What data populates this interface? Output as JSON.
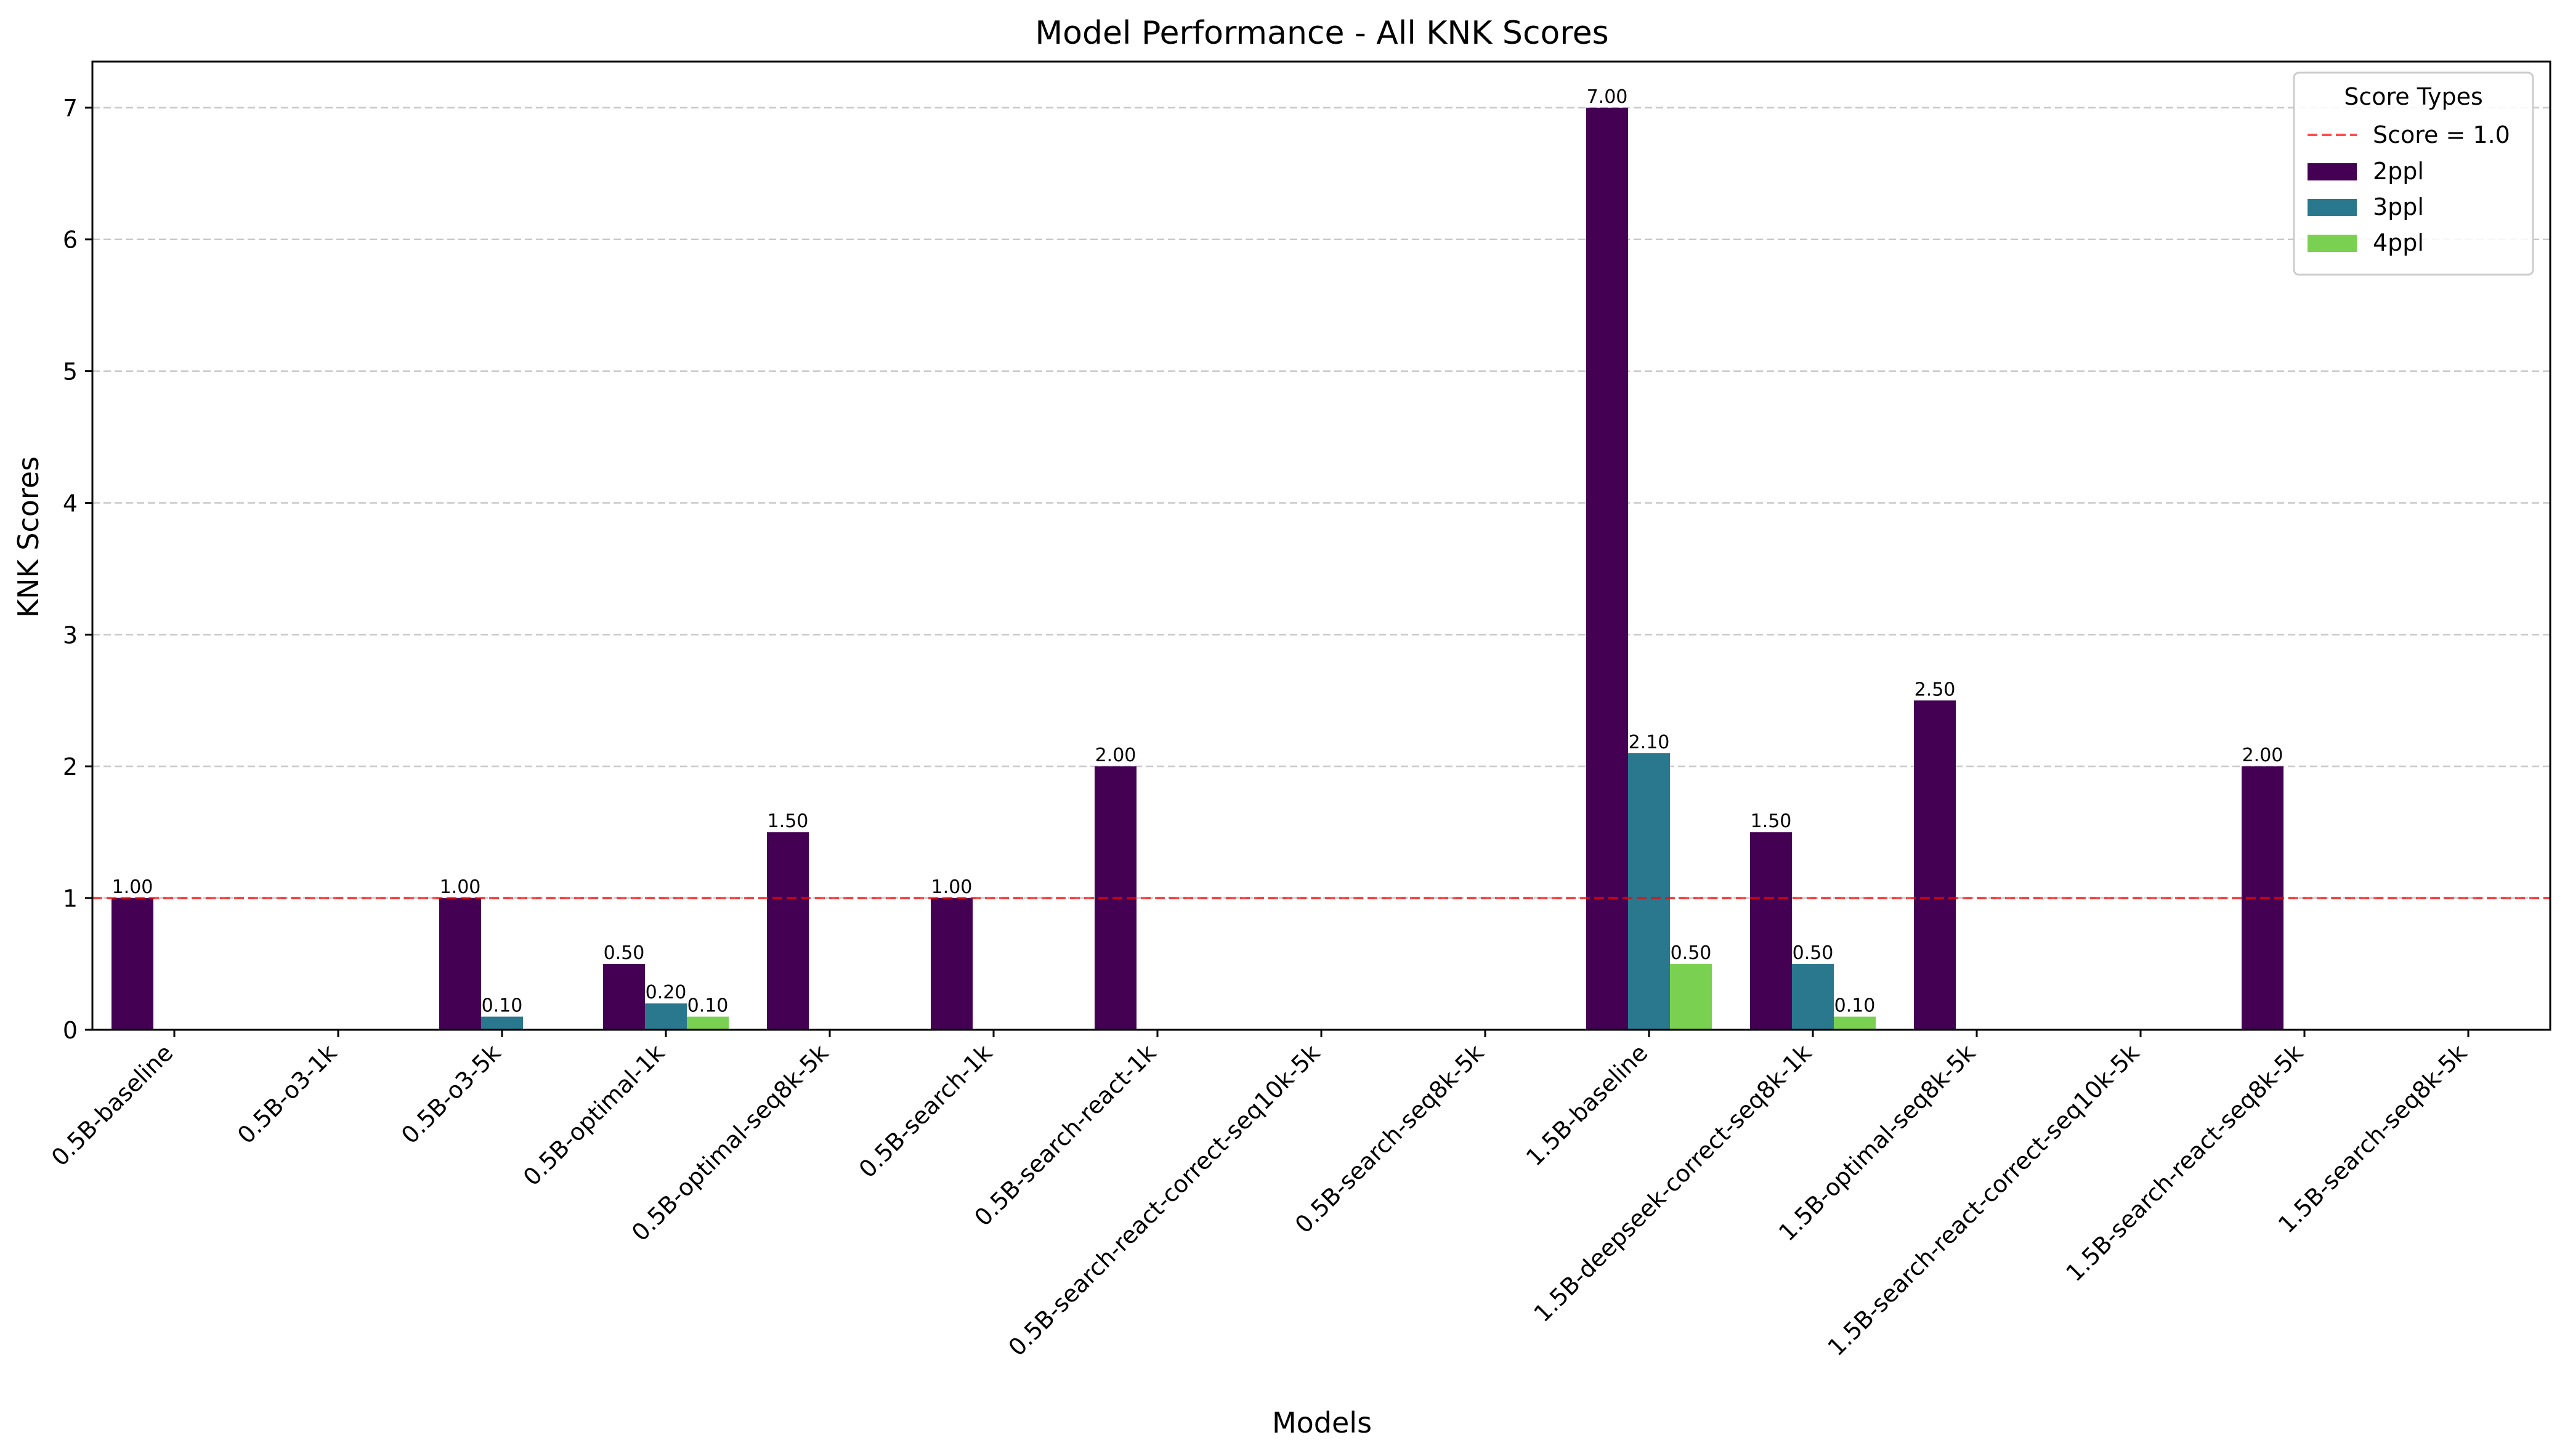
{
  "chart_data": {
    "type": "bar",
    "title": "Model Performance - All KNK Scores",
    "xlabel": "Models",
    "ylabel": "KNK Scores",
    "ylim": [
      0,
      7.35
    ],
    "yticks": [
      0,
      1,
      2,
      3,
      4,
      5,
      6,
      7
    ],
    "grid": "y-dashed",
    "categories": [
      "0.5B-baseline",
      "0.5B-o3-1k",
      "0.5B-o3-5k",
      "0.5B-optimal-1k",
      "0.5B-optimal-seq8k-5k",
      "0.5B-search-1k",
      "0.5B-search-react-1k",
      "0.5B-search-react-correct-seq10k-5k",
      "0.5B-search-seq8k-5k",
      "1.5B-baseline",
      "1.5B-deepseek-correct-seq8k-1k",
      "1.5B-optimal-seq8k-5k",
      "1.5B-search-react-correct-seq10k-5k",
      "1.5B-search-react-seq8k-5k",
      "1.5B-search-seq8k-5k"
    ],
    "series": [
      {
        "name": "2ppl",
        "color": "#440154",
        "values": [
          1.0,
          0,
          1.0,
          0.5,
          1.5,
          1.0,
          2.0,
          0,
          0,
          7.0,
          1.5,
          2.5,
          0,
          2.0,
          0
        ]
      },
      {
        "name": "3ppl",
        "color": "#2a788e",
        "values": [
          0,
          0,
          0.1,
          0.2,
          0,
          0,
          0,
          0,
          0,
          2.1,
          0.5,
          0,
          0,
          0,
          0
        ]
      },
      {
        "name": "4ppl",
        "color": "#7ad151",
        "values": [
          0,
          0,
          0,
          0.1,
          0,
          0,
          0,
          0,
          0,
          0.5,
          0.1,
          0,
          0,
          0,
          0
        ]
      }
    ],
    "reference_line": {
      "label": "Score = 1.0",
      "value": 1.0,
      "color": "#ff0000"
    },
    "legend": {
      "title": "Score Types",
      "placement": "top-right"
    }
  }
}
